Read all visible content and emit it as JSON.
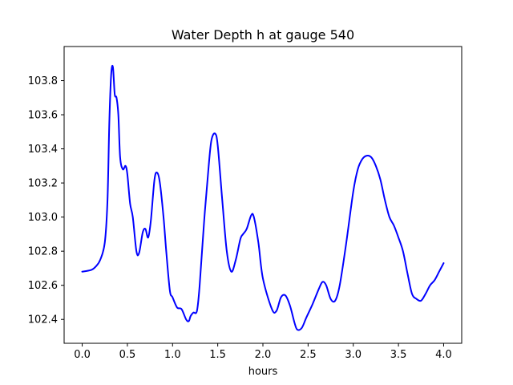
{
  "chart_data": {
    "type": "line",
    "title": "Water Depth h at gauge 540",
    "xlabel": "hours",
    "ylabel": "",
    "xlim": [
      -0.2,
      4.2
    ],
    "ylim": [
      102.26,
      104.0
    ],
    "xticks": [
      0.0,
      0.5,
      1.0,
      1.5,
      2.0,
      2.5,
      3.0,
      3.5,
      4.0
    ],
    "xtick_labels": [
      "0.0",
      "0.5",
      "1.0",
      "1.5",
      "2.0",
      "2.5",
      "3.0",
      "3.5",
      "4.0"
    ],
    "yticks": [
      102.4,
      102.6,
      102.8,
      103.0,
      103.2,
      103.4,
      103.6,
      103.8
    ],
    "ytick_labels": [
      "102.4",
      "102.6",
      "102.8",
      "103.0",
      "103.2",
      "103.4",
      "103.6",
      "103.8"
    ],
    "grid": false,
    "series": [
      {
        "color": "#0000ff",
        "x": [
          0.0,
          0.1,
          0.15,
          0.2,
          0.25,
          0.28,
          0.3,
          0.32,
          0.34,
          0.36,
          0.38,
          0.4,
          0.42,
          0.45,
          0.48,
          0.5,
          0.53,
          0.56,
          0.6,
          0.63,
          0.67,
          0.7,
          0.73,
          0.76,
          0.8,
          0.83,
          0.86,
          0.9,
          0.93,
          0.97,
          1.0,
          1.05,
          1.1,
          1.15,
          1.18,
          1.2,
          1.23,
          1.27,
          1.3,
          1.35,
          1.4,
          1.43,
          1.47,
          1.5,
          1.55,
          1.6,
          1.65,
          1.7,
          1.75,
          1.78,
          1.82,
          1.87,
          1.9,
          1.95,
          2.0,
          2.1,
          2.15,
          2.2,
          2.25,
          2.3,
          2.35,
          2.38,
          2.43,
          2.48,
          2.55,
          2.62,
          2.66,
          2.7,
          2.75,
          2.8,
          2.85,
          2.92,
          3.0,
          3.05,
          3.1,
          3.15,
          3.2,
          3.25,
          3.3,
          3.35,
          3.4,
          3.45,
          3.5,
          3.55,
          3.6,
          3.65,
          3.7,
          3.75,
          3.8,
          3.85,
          3.9,
          3.95,
          4.0
        ],
        "y": [
          102.68,
          102.69,
          102.71,
          102.75,
          102.85,
          103.1,
          103.55,
          103.83,
          103.88,
          103.72,
          103.7,
          103.6,
          103.35,
          103.28,
          103.3,
          103.25,
          103.08,
          103.0,
          102.8,
          102.79,
          102.91,
          102.93,
          102.88,
          102.98,
          103.22,
          103.26,
          103.2,
          103.0,
          102.8,
          102.57,
          102.53,
          102.47,
          102.46,
          102.4,
          102.39,
          102.42,
          102.44,
          102.45,
          102.6,
          102.98,
          103.3,
          103.45,
          103.49,
          103.42,
          103.1,
          102.8,
          102.68,
          102.75,
          102.87,
          102.9,
          102.93,
          103.01,
          103.0,
          102.85,
          102.64,
          102.46,
          102.45,
          102.53,
          102.54,
          102.48,
          102.38,
          102.34,
          102.35,
          102.41,
          102.49,
          102.58,
          102.62,
          102.6,
          102.52,
          102.51,
          102.6,
          102.84,
          103.15,
          103.28,
          103.34,
          103.36,
          103.35,
          103.3,
          103.22,
          103.1,
          103.0,
          102.95,
          102.88,
          102.8,
          102.67,
          102.55,
          102.52,
          102.51,
          102.55,
          102.6,
          102.63,
          102.68,
          102.73
        ]
      }
    ]
  }
}
